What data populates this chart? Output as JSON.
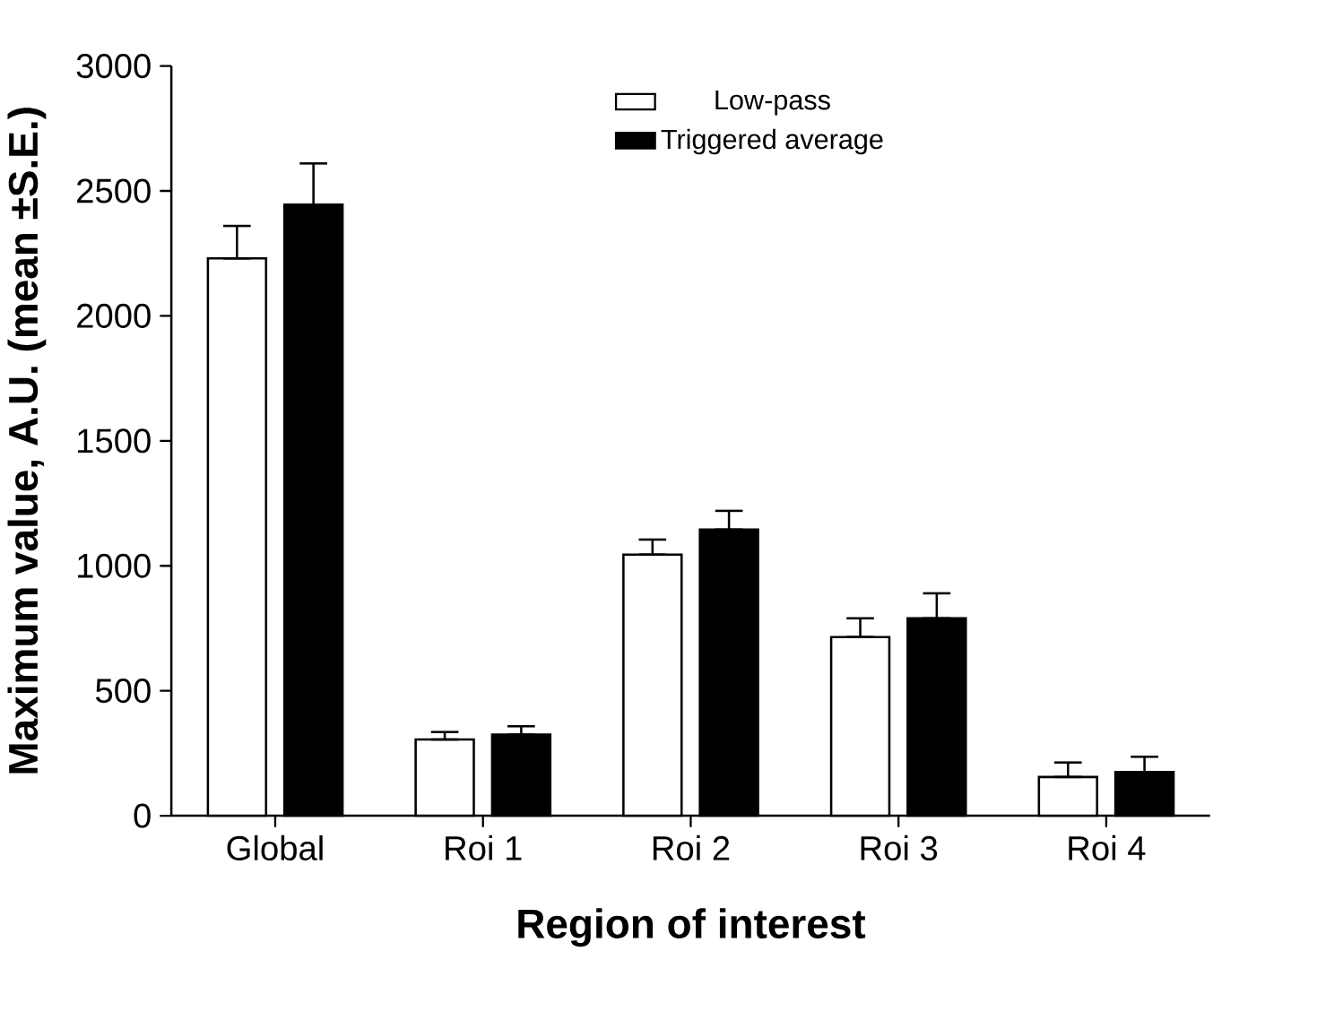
{
  "chart_data": {
    "type": "bar",
    "xlabel": "Region of interest",
    "ylabel": "Maximum value, A.U. (mean ±S.E.)",
    "categories": [
      "Global",
      "Roi 1",
      "Roi 2",
      "Roi 3",
      "Roi 4"
    ],
    "series": [
      {
        "name": "Low-pass",
        "color": "#ffffff",
        "values": [
          2230,
          305,
          1045,
          715,
          155
        ],
        "errors": [
          [
            2230,
            2360
          ],
          [
            305,
            335
          ],
          [
            1045,
            1105
          ],
          [
            715,
            790
          ],
          [
            155,
            213
          ]
        ]
      },
      {
        "name": "Triggered average",
        "color": "#000000",
        "values": [
          2445,
          325,
          1145,
          790,
          175
        ],
        "errors": [
          [
            2445,
            2610
          ],
          [
            325,
            358
          ],
          [
            1145,
            1220
          ],
          [
            790,
            890
          ],
          [
            175,
            236
          ]
        ]
      }
    ],
    "ylim": [
      0,
      3000
    ],
    "yticks": [
      0,
      500,
      1000,
      1500,
      2000,
      2500,
      3000
    ],
    "grid": false,
    "legend": "top right"
  }
}
